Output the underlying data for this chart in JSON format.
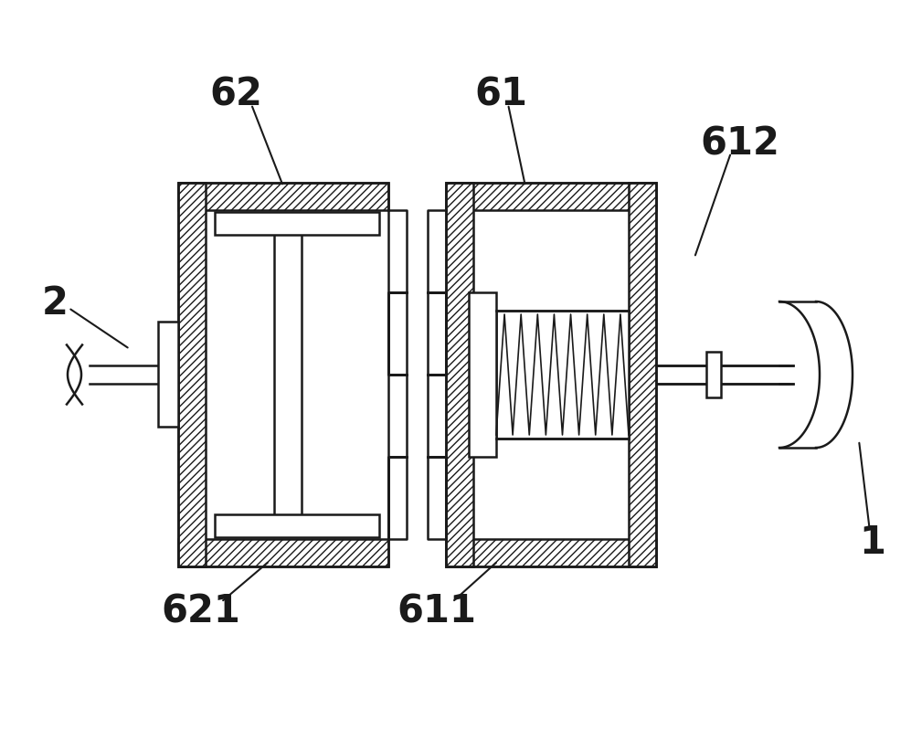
{
  "bg_color": "#ffffff",
  "line_color": "#1a1a1a",
  "lw": 1.8,
  "lw_thin": 1.2,
  "labels": [
    "62",
    "61",
    "612",
    "2",
    "1",
    "621",
    "611"
  ],
  "label_fontsize": 30,
  "annotation_lw": 1.5
}
